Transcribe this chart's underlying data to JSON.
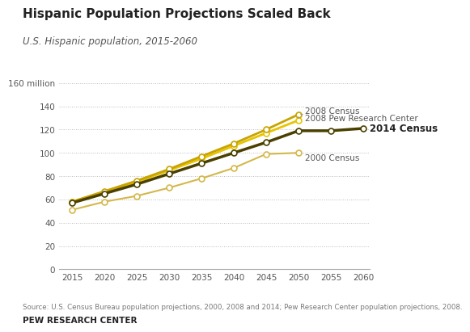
{
  "title": "Hispanic Population Projections Scaled Back",
  "subtitle": "U.S. Hispanic population, 2015-2060",
  "source": "Source: U.S. Census Bureau population projections, 2000, 2008 and 2014; Pew Research Center population projections, 2008.",
  "footer": "PEW RESEARCH CENTER",
  "years": [
    2015,
    2020,
    2025,
    2030,
    2035,
    2040,
    2045,
    2050,
    2055,
    2060
  ],
  "series_order": [
    "2000 Census",
    "2008 Pew Research Center",
    "2008 Census",
    "2014 Census"
  ],
  "series": {
    "2014 Census": {
      "values": [
        57,
        65,
        73,
        82,
        91,
        100,
        109,
        119,
        119,
        121
      ],
      "color": "#4a4000",
      "linewidth": 2.5,
      "markersize": 5
    },
    "2008 Census": {
      "values": [
        58,
        67,
        76,
        86,
        97,
        108,
        120,
        133,
        null,
        null
      ],
      "color": "#c8a400",
      "linewidth": 2.0,
      "markersize": 5
    },
    "2008 Pew Research Center": {
      "values": [
        58,
        66,
        75,
        85,
        95,
        106,
        117,
        128,
        null,
        null
      ],
      "color": "#e8c400",
      "linewidth": 2.0,
      "markersize": 5
    },
    "2000 Census": {
      "values": [
        51,
        58,
        63,
        70,
        78,
        87,
        99,
        100,
        null,
        null
      ],
      "color": "#d4b84a",
      "linewidth": 1.5,
      "markersize": 5
    }
  },
  "ylim": [
    0,
    165
  ],
  "yticks": [
    0,
    20,
    40,
    60,
    80,
    100,
    120,
    140,
    160
  ],
  "ytick_labels": [
    "0",
    "20",
    "40",
    "60",
    "80",
    "100",
    "120",
    "140",
    "160 million"
  ],
  "xticks": [
    2015,
    2020,
    2025,
    2030,
    2035,
    2040,
    2045,
    2050,
    2055,
    2060
  ],
  "background_color": "#ffffff",
  "grid_color": "#bbbbbb",
  "label_color": "#555555"
}
